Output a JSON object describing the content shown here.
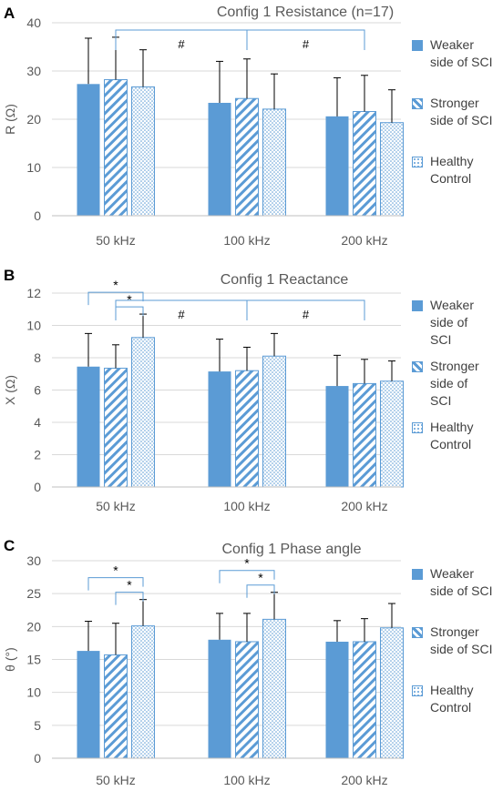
{
  "colors": {
    "bar": "#5b9bd5",
    "axis_text": "#595959",
    "gridline": "#d9d9d9",
    "bracket": "#5b9bd5"
  },
  "chart_data": [
    {
      "type": "bar",
      "panel_label": "A",
      "title": "Config 1 Resistance (n=17)",
      "ylabel": "R (Ω)",
      "ylim": [
        0,
        40
      ],
      "yticks": [
        "0",
        "10",
        "20",
        "30",
        "40"
      ],
      "categories": [
        "50 kHz",
        "100 kHz",
        "200 kHz"
      ],
      "series": [
        {
          "name": "Weaker side of SCI",
          "pattern": "solid",
          "values": [
            27.3,
            23.4,
            20.6
          ],
          "error": [
            9.5,
            8.6,
            8.0
          ]
        },
        {
          "name": "Stronger side of SCI",
          "pattern": "diagonal",
          "values": [
            28.2,
            24.3,
            21.6
          ],
          "error": [
            8.8,
            8.2,
            7.5
          ]
        },
        {
          "name": "Healthy Control",
          "pattern": "dots",
          "values": [
            26.7,
            22.1,
            19.3
          ],
          "error": [
            7.7,
            7.3,
            6.8
          ]
        }
      ],
      "annotations": [
        {
          "symbol": "#",
          "from_category": 0,
          "to_category": 1
        },
        {
          "symbol": "#",
          "from_category": 1,
          "to_category": 2
        }
      ]
    },
    {
      "type": "bar",
      "panel_label": "B",
      "title": "Config 1 Reactance",
      "ylabel": "X (Ω)",
      "ylim": [
        0,
        12
      ],
      "yticks": [
        "0",
        "2",
        "4",
        "6",
        "8",
        "10",
        "12"
      ],
      "categories": [
        "50 kHz",
        "100 kHz",
        "200 kHz"
      ],
      "series": [
        {
          "name": "Weaker side of SCI",
          "pattern": "solid",
          "values": [
            7.45,
            7.15,
            6.25
          ],
          "error": [
            2.05,
            2.0,
            1.9
          ]
        },
        {
          "name": "Stronger side of SCI",
          "pattern": "diagonal",
          "values": [
            7.35,
            7.2,
            6.4
          ],
          "error": [
            1.45,
            1.45,
            1.5
          ]
        },
        {
          "name": "Healthy Control",
          "pattern": "dots",
          "values": [
            9.25,
            8.1,
            6.55
          ],
          "error": [
            1.45,
            1.4,
            1.25
          ]
        }
      ],
      "annotations": [
        {
          "symbol": "*",
          "category": 0,
          "from_series": 0,
          "to_series": 2
        },
        {
          "symbol": "*",
          "category": 0,
          "from_series": 1,
          "to_series": 2
        },
        {
          "symbol": "#",
          "from_category": 0,
          "to_category": 1
        },
        {
          "symbol": "#",
          "from_category": 1,
          "to_category": 2
        }
      ]
    },
    {
      "type": "bar",
      "panel_label": "C",
      "title": "Config 1 Phase angle",
      "ylabel": "θ (°)",
      "ylim": [
        0,
        30
      ],
      "yticks": [
        "0",
        "5",
        "10",
        "15",
        "20",
        "25",
        "30"
      ],
      "categories": [
        "50 kHz",
        "100 kHz",
        "200 kHz"
      ],
      "series": [
        {
          "name": "Weaker side of SCI",
          "pattern": "solid",
          "values": [
            16.3,
            18.0,
            17.7
          ],
          "error": [
            4.5,
            4.0,
            3.2
          ]
        },
        {
          "name": "Stronger side of SCI",
          "pattern": "diagonal",
          "values": [
            15.7,
            17.7,
            17.7
          ],
          "error": [
            4.8,
            4.3,
            3.5
          ]
        },
        {
          "name": "Healthy Control",
          "pattern": "dots",
          "values": [
            20.1,
            21.1,
            19.8
          ],
          "error": [
            4.0,
            4.1,
            3.7
          ]
        }
      ],
      "annotations": [
        {
          "symbol": "*",
          "category": 0,
          "from_series": 0,
          "to_series": 2
        },
        {
          "symbol": "*",
          "category": 0,
          "from_series": 1,
          "to_series": 2
        },
        {
          "symbol": "*",
          "category": 1,
          "from_series": 0,
          "to_series": 2
        },
        {
          "symbol": "*",
          "category": 1,
          "from_series": 1,
          "to_series": 2
        }
      ]
    }
  ],
  "legends": [
    {
      "items": [
        [
          "Weaker",
          "side of SCI"
        ],
        [
          "Stronger",
          "side of SCI"
        ],
        [
          "Healthy",
          "Control"
        ]
      ]
    },
    {
      "items": [
        [
          "Weaker",
          "side of",
          "SCI"
        ],
        [
          "Stronger",
          "side of",
          "SCI"
        ],
        [
          "Healthy",
          "Control"
        ]
      ]
    },
    {
      "items": [
        [
          "Weaker",
          "side of SCI"
        ],
        [
          "Stronger",
          "side of SCI"
        ],
        [
          "Healthy",
          "Control"
        ]
      ]
    }
  ]
}
